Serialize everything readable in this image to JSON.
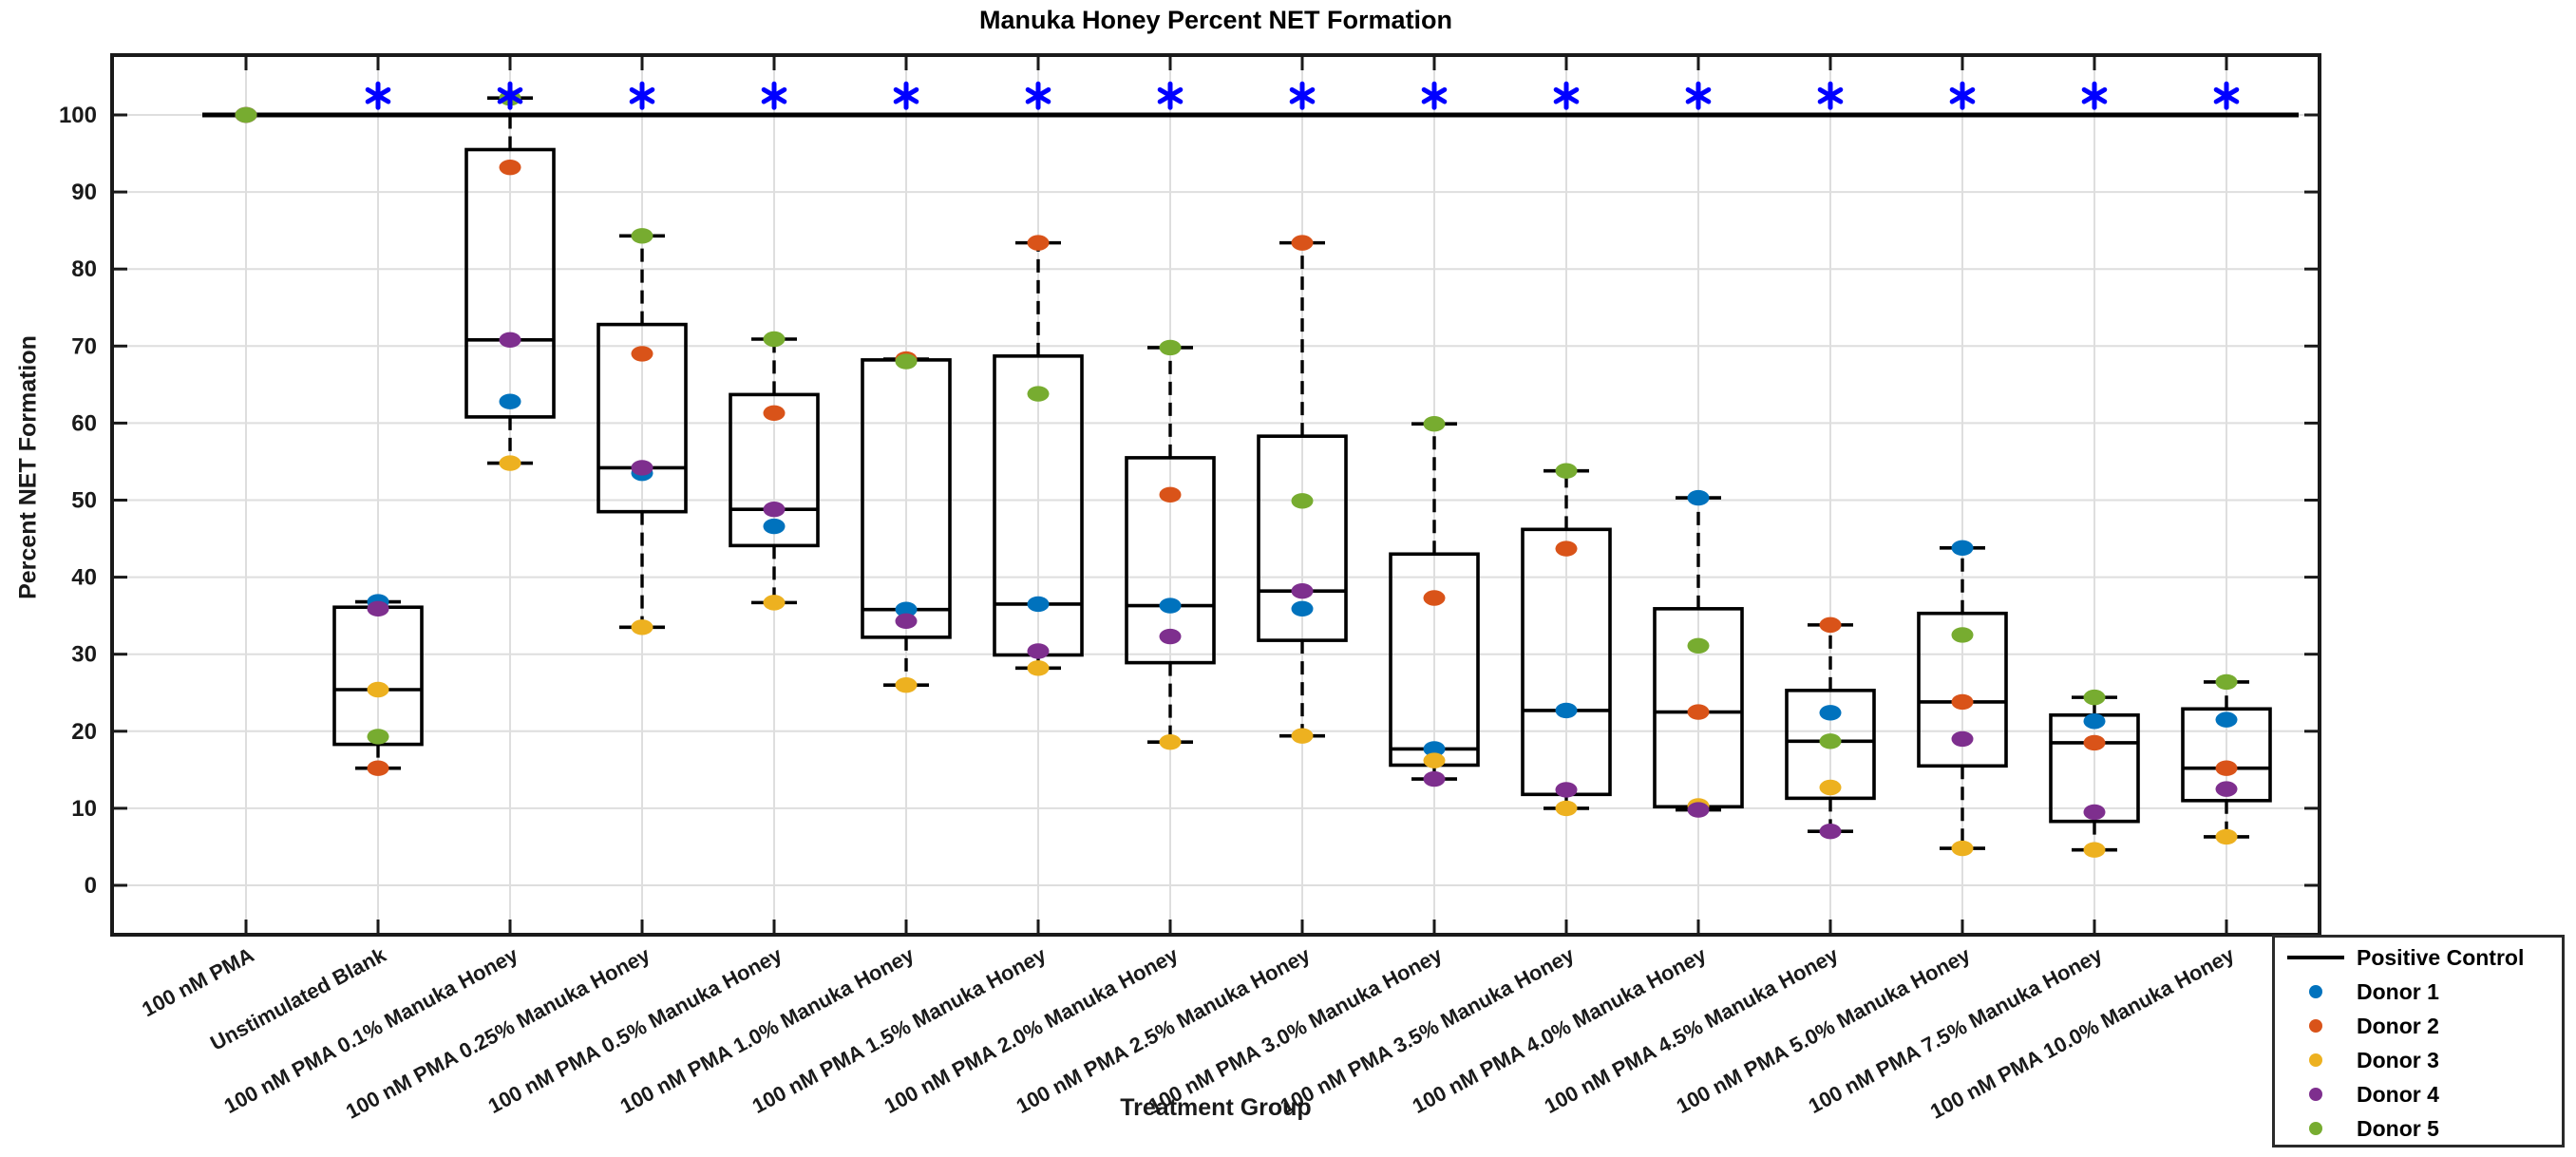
{
  "figure": {
    "title": "Manuka Honey Percent NET Formation",
    "xlabel": "Treatment Group",
    "ylabel": "Percent NET Formation"
  },
  "legend": {
    "items": [
      {
        "label": "Positive Control",
        "swatch": "line",
        "color": "#000000"
      },
      {
        "label": "Donor 1",
        "swatch": "dot",
        "color": "#0072BD"
      },
      {
        "label": "Donor 2",
        "swatch": "dot",
        "color": "#D95319"
      },
      {
        "label": "Donor 3",
        "swatch": "dot",
        "color": "#EDB120"
      },
      {
        "label": "Donor 4",
        "swatch": "dot",
        "color": "#7E2F8E"
      },
      {
        "label": "Donor 5",
        "swatch": "dot",
        "color": "#77AC30"
      }
    ]
  },
  "chart_data": {
    "type": "box",
    "title": "Manuka Honey Percent NET Formation",
    "xlabel": "Treatment Group",
    "ylabel": "Percent NET Formation",
    "ylim": [
      -6.5,
      107.5
    ],
    "yticks": [
      0,
      10,
      20,
      30,
      40,
      50,
      60,
      70,
      80,
      90,
      100
    ],
    "grid": true,
    "positive_control_line_y": 100,
    "significance_marker": "*",
    "significance_marker_color": "#0000FF",
    "significance_marker_y": 102.5,
    "donors": [
      {
        "name": "Donor 1",
        "color": "#0072BD"
      },
      {
        "name": "Donor 2",
        "color": "#D95319"
      },
      {
        "name": "Donor 3",
        "color": "#EDB120"
      },
      {
        "name": "Donor 4",
        "color": "#7E2F8E"
      },
      {
        "name": "Donor 5",
        "color": "#77AC30"
      }
    ],
    "groups": [
      {
        "label": "100 nM PMA",
        "significant": false,
        "values": [
          100,
          100,
          100,
          100,
          100
        ],
        "box": {
          "lo": 100,
          "q1": 100,
          "med": 100,
          "q3": 100,
          "hi": 100
        }
      },
      {
        "label": "Unstimulated Blank",
        "significant": true,
        "values": [
          36.8,
          15.2,
          25.4,
          35.9,
          19.3
        ],
        "box": {
          "lo": 15.2,
          "q1": 18.3,
          "med": 25.4,
          "q3": 36.1,
          "hi": 36.8
        }
      },
      {
        "label": "100 nM PMA 0.1% Manuka Honey",
        "significant": true,
        "values": [
          62.8,
          93.2,
          54.8,
          70.8,
          102.2
        ],
        "box": {
          "lo": 54.8,
          "q1": 60.8,
          "med": 70.8,
          "q3": 95.5,
          "hi": 102.2
        }
      },
      {
        "label": "100 nM PMA 0.25% Manuka Honey",
        "significant": true,
        "values": [
          53.5,
          69.0,
          33.5,
          54.2,
          84.3
        ],
        "box": {
          "lo": 33.5,
          "q1": 48.5,
          "med": 54.2,
          "q3": 72.8,
          "hi": 84.3
        }
      },
      {
        "label": "100 nM PMA 0.5% Manuka Honey",
        "significant": true,
        "values": [
          46.6,
          61.3,
          36.7,
          48.8,
          70.9
        ],
        "box": {
          "lo": 36.7,
          "q1": 44.1,
          "med": 48.8,
          "q3": 63.7,
          "hi": 70.9
        }
      },
      {
        "label": "100 nM PMA 1.0% Manuka Honey",
        "significant": true,
        "values": [
          35.8,
          68.3,
          26.0,
          34.3,
          68.0
        ],
        "box": {
          "lo": 26.0,
          "q1": 32.2,
          "med": 35.8,
          "q3": 68.2,
          "hi": 68.3
        }
      },
      {
        "label": "100 nM PMA 1.5% Manuka Honey",
        "significant": true,
        "values": [
          36.5,
          83.4,
          28.2,
          30.4,
          63.8
        ],
        "box": {
          "lo": 28.2,
          "q1": 29.9,
          "med": 36.5,
          "q3": 68.7,
          "hi": 83.4
        }
      },
      {
        "label": "100 nM PMA 2.0% Manuka Honey",
        "significant": true,
        "values": [
          36.3,
          50.7,
          18.6,
          32.3,
          69.8
        ],
        "box": {
          "lo": 18.6,
          "q1": 28.9,
          "med": 36.3,
          "q3": 55.5,
          "hi": 69.8
        }
      },
      {
        "label": "100 nM PMA 2.5% Manuka Honey",
        "significant": true,
        "values": [
          35.9,
          83.4,
          19.4,
          38.2,
          49.9
        ],
        "box": {
          "lo": 19.4,
          "q1": 31.8,
          "med": 38.2,
          "q3": 58.3,
          "hi": 83.4
        }
      },
      {
        "label": "100 nM PMA 3.0% Manuka Honey",
        "significant": true,
        "values": [
          17.7,
          37.3,
          16.2,
          13.8,
          59.9
        ],
        "box": {
          "lo": 13.8,
          "q1": 15.6,
          "med": 17.7,
          "q3": 43.0,
          "hi": 59.9
        }
      },
      {
        "label": "100 nM PMA 3.5% Manuka Honey",
        "significant": true,
        "values": [
          22.7,
          43.7,
          10.0,
          12.4,
          53.8
        ],
        "box": {
          "lo": 10.0,
          "q1": 11.8,
          "med": 22.7,
          "q3": 46.2,
          "hi": 53.8
        }
      },
      {
        "label": "100 nM PMA 4.0% Manuka Honey",
        "significant": true,
        "values": [
          50.3,
          22.5,
          10.3,
          9.8,
          31.1
        ],
        "box": {
          "lo": 9.8,
          "q1": 10.2,
          "med": 22.5,
          "q3": 35.9,
          "hi": 50.3
        }
      },
      {
        "label": "100 nM PMA 4.5% Manuka Honey",
        "significant": true,
        "values": [
          22.4,
          33.8,
          12.7,
          7.0,
          18.7
        ],
        "box": {
          "lo": 7.0,
          "q1": 11.3,
          "med": 18.7,
          "q3": 25.3,
          "hi": 33.8
        }
      },
      {
        "label": "100 nM PMA 5.0% Manuka Honey",
        "significant": true,
        "values": [
          43.8,
          23.8,
          4.8,
          19.0,
          32.5
        ],
        "box": {
          "lo": 4.8,
          "q1": 15.5,
          "med": 23.8,
          "q3": 35.3,
          "hi": 43.8
        }
      },
      {
        "label": "100 nM PMA 7.5% Manuka Honey",
        "significant": true,
        "values": [
          21.3,
          18.5,
          4.6,
          9.5,
          24.4
        ],
        "box": {
          "lo": 4.6,
          "q1": 8.3,
          "med": 18.5,
          "q3": 22.1,
          "hi": 24.4
        }
      },
      {
        "label": "100 nM PMA 10.0% Manuka Honey",
        "significant": true,
        "values": [
          21.5,
          15.2,
          6.3,
          12.5,
          26.4
        ],
        "box": {
          "lo": 6.3,
          "q1": 11.0,
          "med": 15.2,
          "q3": 22.9,
          "hi": 26.4
        }
      }
    ]
  },
  "colors": {
    "axis": "#1a1a1a",
    "grid": "#dedede",
    "box_stroke": "#000000",
    "background": "#ffffff"
  }
}
